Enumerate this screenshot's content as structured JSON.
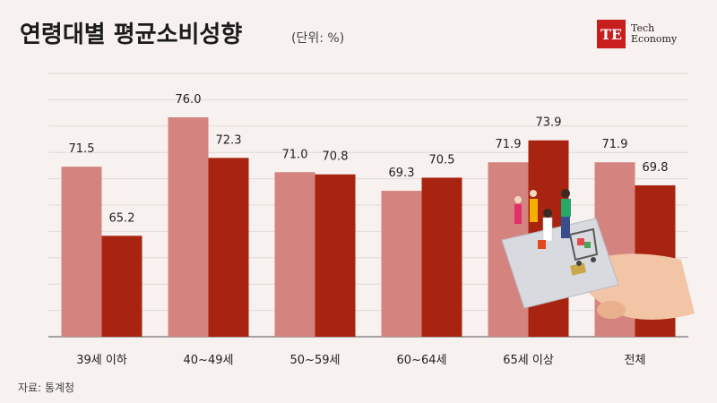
{
  "header": {
    "title": "연령대별 평균소비성향",
    "unit": "(단위: %)"
  },
  "logo": {
    "mark": "TE",
    "line1": "Tech",
    "line2": "Economy"
  },
  "source": "자료: 통계청",
  "colors": {
    "series1": "#d4837f",
    "series2": "#a82410",
    "grid": "#e3d9d6",
    "axis": "#888888"
  },
  "chart_data": {
    "type": "bar",
    "categories": [
      "39세 이하",
      "40~49세",
      "50~59세",
      "60~64세",
      "65세 이상",
      "전체"
    ],
    "series": [
      {
        "values": [
          71.5,
          76.0,
          71.0,
          69.3,
          71.9,
          71.9
        ],
        "color": "#d4837f"
      },
      {
        "values": [
          65.2,
          72.3,
          70.8,
          70.5,
          73.9,
          69.8
        ],
        "color": "#a82410"
      }
    ],
    "value_labels": [
      [
        "71.5",
        "76.0",
        "71.0",
        "69.3",
        "71.9",
        "71.9"
      ],
      [
        "65.2",
        "72.3",
        "70.8",
        "70.5",
        "73.9",
        "69.8"
      ]
    ],
    "ylim": [
      56,
      80
    ],
    "grid": true,
    "illustration": "shopping-card-hand-illustration"
  }
}
